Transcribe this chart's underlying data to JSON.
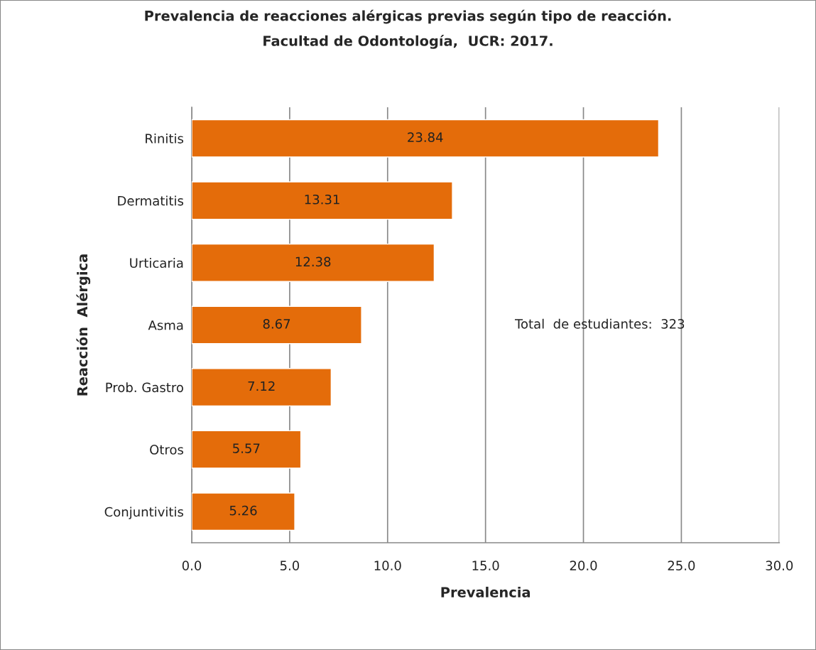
{
  "chart_data": {
    "type": "bar",
    "orientation": "horizontal",
    "title": "Prevalencia de reacciones alérgicas previas según tipo de reacción.\nFacultad de Odontología,  UCR: 2017.",
    "xlabel": "Prevalencia",
    "ylabel": "Reacción  Alérgica",
    "categories": [
      "Rinitis",
      "Dermatitis",
      "Urticaria",
      "Asma",
      "Prob. Gastro",
      "Otros",
      "Conjuntivitis"
    ],
    "values": [
      23.84,
      13.31,
      12.38,
      8.67,
      7.12,
      5.57,
      5.26
    ],
    "color": "#e46c0a",
    "xlim": [
      0,
      30
    ],
    "xticks": [
      {
        "value": 0,
        "label": "0.0"
      },
      {
        "value": 5,
        "label": "5.0"
      },
      {
        "value": 10,
        "label": "10.0"
      },
      {
        "value": 15,
        "label": "15.0"
      },
      {
        "value": 20,
        "label": "20.0"
      },
      {
        "value": 25,
        "label": "25.0"
      },
      {
        "value": 30,
        "label": "30.0"
      }
    ],
    "grid": "x",
    "data_labels": true,
    "legend": false,
    "annotations": [
      "Total  de estudiantes:  323"
    ]
  }
}
